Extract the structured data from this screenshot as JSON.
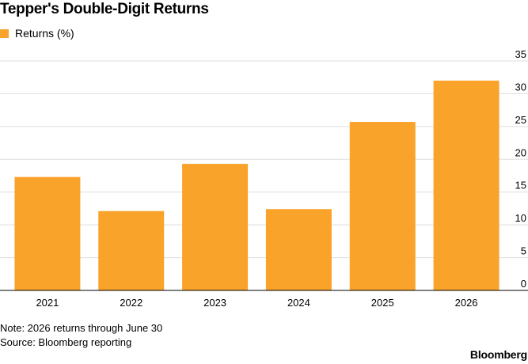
{
  "chart_data": {
    "type": "bar",
    "title": "Tepper's Double-Digit Returns",
    "categories": [
      "2021",
      "2022",
      "2023",
      "2024",
      "2025",
      "2026"
    ],
    "series": [
      {
        "name": "Returns (%)",
        "values": [
          17.3,
          12.1,
          19.3,
          12.4,
          25.7,
          32.0
        ]
      }
    ],
    "ylim": [
      0,
      35
    ],
    "yticks": [
      "0",
      "5",
      "10",
      "15",
      "20",
      "25",
      "30",
      "35"
    ],
    "grid": true,
    "legend_position": "top-left",
    "colors": {
      "bar": "#F9A32A",
      "grid": "#dddddd",
      "axis": "#000000"
    }
  },
  "notes": {
    "line1": "Note: 2026 returns through June 30",
    "line2": "Source: Bloomberg reporting"
  },
  "brand": "Bloomberg"
}
